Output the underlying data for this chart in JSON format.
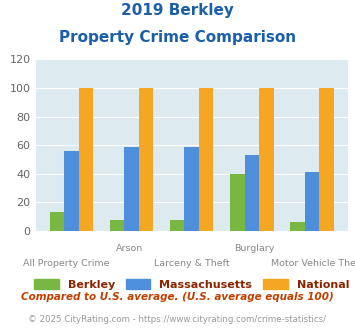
{
  "title_line1": "2019 Berkley",
  "title_line2": "Property Crime Comparison",
  "categories": [
    "All Property Crime",
    "Arson",
    "Larceny & Theft",
    "Burglary",
    "Motor Vehicle Theft"
  ],
  "x_labels_top": [
    "",
    "Arson",
    "",
    "Burglary",
    ""
  ],
  "x_labels_bottom": [
    "All Property Crime",
    "",
    "Larceny & Theft",
    "",
    "Motor Vehicle Theft"
  ],
  "berkley": [
    13,
    8,
    8,
    40,
    6
  ],
  "massachusetts": [
    56,
    59,
    59,
    53,
    41
  ],
  "national": [
    100,
    100,
    100,
    100,
    100
  ],
  "berkley_color": "#77b742",
  "massachusetts_color": "#4d8fdb",
  "national_color": "#f5a623",
  "title_color": "#1a5fa8",
  "bg_color": "#ddeaf0",
  "ylim": [
    0,
    120
  ],
  "yticks": [
    0,
    20,
    40,
    60,
    80,
    100,
    120
  ],
  "footnote1": "Compared to U.S. average. (U.S. average equals 100)",
  "footnote2": "© 2025 CityRating.com - https://www.cityrating.com/crime-statistics/",
  "footnote1_color": "#c04000",
  "footnote2_color": "#999999",
  "legend_label_color": "#8b2500"
}
